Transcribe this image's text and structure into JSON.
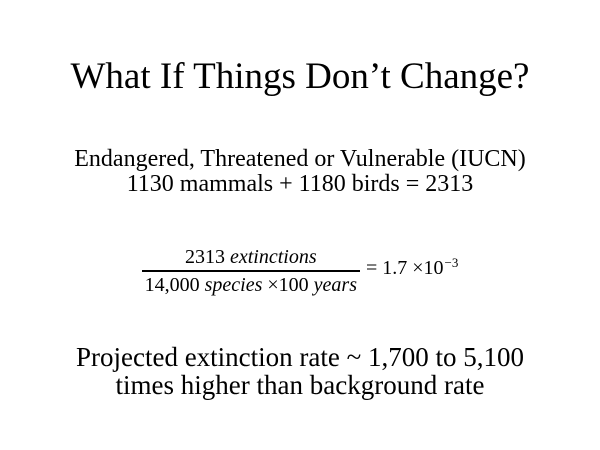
{
  "slide": {
    "title": "What If Things Don’t Change?",
    "statement": {
      "line1": "Endangered, Threatened or Vulnerable (IUCN)",
      "line2": "1130 mammals + 1180 birds = 2313"
    },
    "equation": {
      "numerator": {
        "value": "2313",
        "unit": "extinctions"
      },
      "denominator": {
        "value": "14,000",
        "unit1": "species",
        "multiplier": "×100",
        "unit2": "years"
      },
      "result": {
        "equals_sign": "=",
        "coefficient": "1.7",
        "base": "×10",
        "exponent": "−3"
      }
    },
    "conclusion": {
      "line1": "Projected extinction rate ~ 1,700 to 5,100",
      "line2": "times higher than background rate"
    },
    "colors": {
      "background": "#ffffff",
      "text": "#000000"
    }
  }
}
